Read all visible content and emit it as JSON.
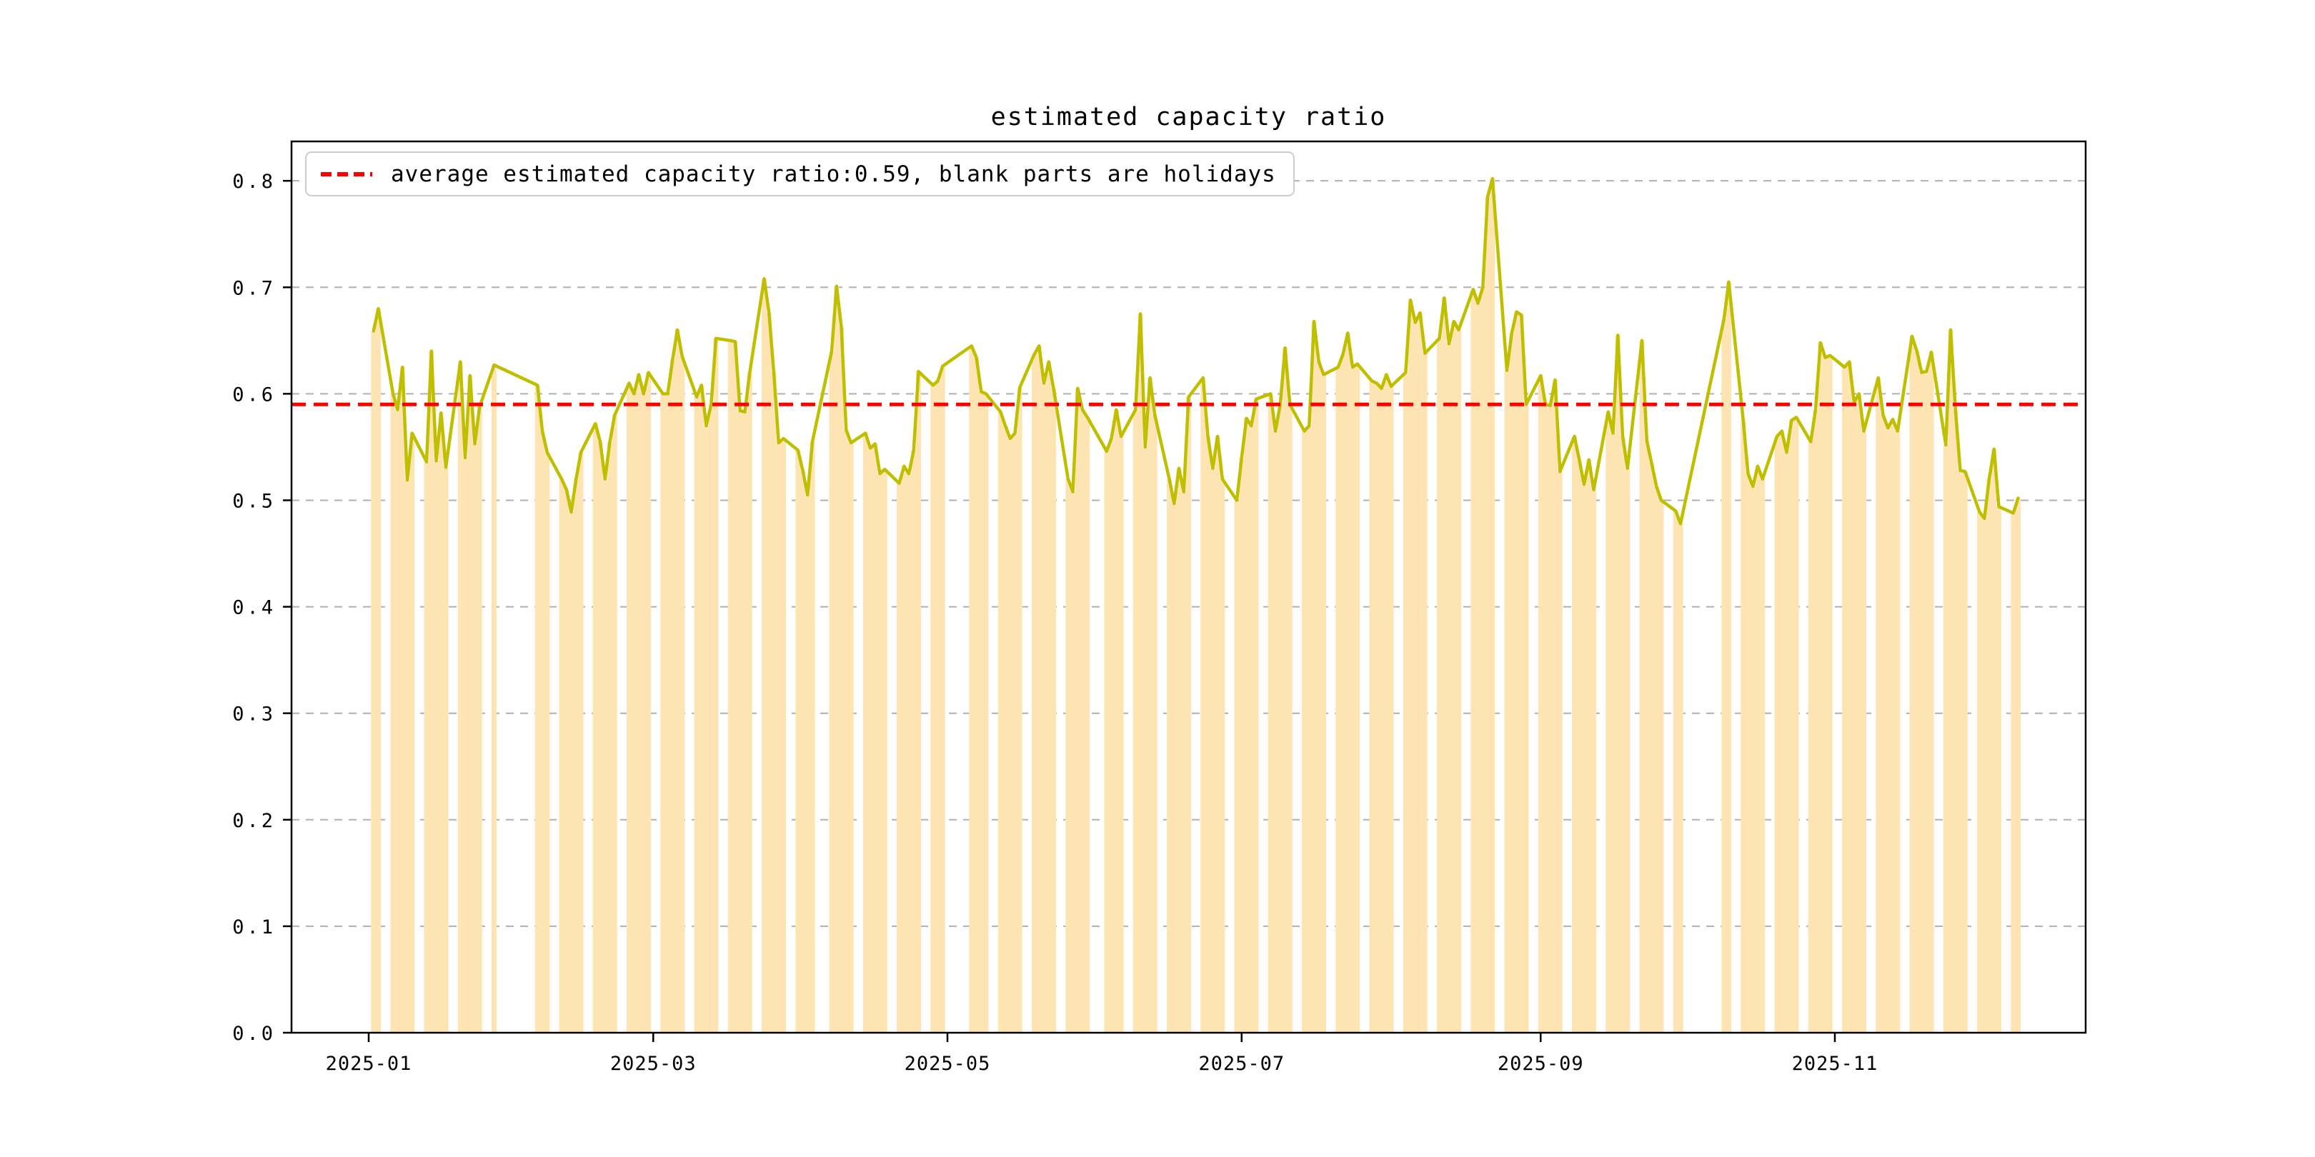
{
  "chart_data": {
    "type": "line",
    "title": "estimated capacity ratio",
    "legend_label": "average estimated capacity ratio:0.59, blank parts are holidays",
    "average_value": 0.59,
    "average_label": "0.59",
    "legend_position": "upper left",
    "grid": true,
    "ylim": [
      0.0,
      0.837
    ],
    "xlim": [
      "2024-12-16",
      "2025-12-23"
    ],
    "yticks": [
      {
        "v": 0.0,
        "label": "0.0"
      },
      {
        "v": 0.1,
        "label": "0.1"
      },
      {
        "v": 0.2,
        "label": "0.2"
      },
      {
        "v": 0.3,
        "label": "0.3"
      },
      {
        "v": 0.4,
        "label": "0.4"
      },
      {
        "v": 0.5,
        "label": "0.5"
      },
      {
        "v": 0.6,
        "label": "0.6"
      },
      {
        "v": 0.7,
        "label": "0.7"
      },
      {
        "v": 0.8,
        "label": "0.8"
      }
    ],
    "xticks": [
      {
        "date": "2025-01-01",
        "label": "2025-01"
      },
      {
        "date": "2025-03-01",
        "label": "2025-03"
      },
      {
        "date": "2025-05-01",
        "label": "2025-05"
      },
      {
        "date": "2025-07-01",
        "label": "2025-07"
      },
      {
        "date": "2025-09-01",
        "label": "2025-09"
      },
      {
        "date": "2025-11-01",
        "label": "2025-11"
      }
    ],
    "colors": {
      "line": "#bfbf00",
      "bars": "#ffe4b3",
      "average_line": "#ff0000",
      "grid": "#b0b0b0",
      "axes": "#000000"
    },
    "series": {
      "name": "estimated capacity ratio (workdays, blanks are holidays)",
      "dates": [
        "2025-01-02",
        "2025-01-03",
        "2025-01-06",
        "2025-01-07",
        "2025-01-08",
        "2025-01-09",
        "2025-01-10",
        "2025-01-13",
        "2025-01-14",
        "2025-01-15",
        "2025-01-16",
        "2025-01-17",
        "2025-01-20",
        "2025-01-21",
        "2025-01-22",
        "2025-01-23",
        "2025-01-24",
        "2025-01-27",
        "2025-02-05",
        "2025-02-06",
        "2025-02-07",
        "2025-02-10",
        "2025-02-11",
        "2025-02-12",
        "2025-02-13",
        "2025-02-14",
        "2025-02-17",
        "2025-02-18",
        "2025-02-19",
        "2025-02-20",
        "2025-02-21",
        "2025-02-24",
        "2025-02-25",
        "2025-02-26",
        "2025-02-27",
        "2025-02-28",
        "2025-03-03",
        "2025-03-04",
        "2025-03-05",
        "2025-03-06",
        "2025-03-07",
        "2025-03-10",
        "2025-03-11",
        "2025-03-12",
        "2025-03-13",
        "2025-03-14",
        "2025-03-17",
        "2025-03-18",
        "2025-03-19",
        "2025-03-20",
        "2025-03-21",
        "2025-03-24",
        "2025-03-25",
        "2025-03-26",
        "2025-03-27",
        "2025-03-28",
        "2025-03-31",
        "2025-04-01",
        "2025-04-02",
        "2025-04-03",
        "2025-04-07",
        "2025-04-08",
        "2025-04-09",
        "2025-04-10",
        "2025-04-11",
        "2025-04-14",
        "2025-04-15",
        "2025-04-16",
        "2025-04-17",
        "2025-04-18",
        "2025-04-21",
        "2025-04-22",
        "2025-04-23",
        "2025-04-24",
        "2025-04-25",
        "2025-04-28",
        "2025-04-29",
        "2025-04-30",
        "2025-05-06",
        "2025-05-07",
        "2025-05-08",
        "2025-05-09",
        "2025-05-12",
        "2025-05-13",
        "2025-05-14",
        "2025-05-15",
        "2025-05-16",
        "2025-05-19",
        "2025-05-20",
        "2025-05-21",
        "2025-05-22",
        "2025-05-23",
        "2025-05-26",
        "2025-05-27",
        "2025-05-28",
        "2025-05-29",
        "2025-05-30",
        "2025-06-03",
        "2025-06-04",
        "2025-06-05",
        "2025-06-06",
        "2025-06-09",
        "2025-06-10",
        "2025-06-11",
        "2025-06-12",
        "2025-06-13",
        "2025-06-16",
        "2025-06-17",
        "2025-06-18",
        "2025-06-19",
        "2025-06-20",
        "2025-06-23",
        "2025-06-24",
        "2025-06-25",
        "2025-06-26",
        "2025-06-27",
        "2025-06-30",
        "2025-07-01",
        "2025-07-02",
        "2025-07-03",
        "2025-07-04",
        "2025-07-07",
        "2025-07-08",
        "2025-07-09",
        "2025-07-10",
        "2025-07-11",
        "2025-07-14",
        "2025-07-15",
        "2025-07-16",
        "2025-07-17",
        "2025-07-18",
        "2025-07-21",
        "2025-07-22",
        "2025-07-23",
        "2025-07-24",
        "2025-07-25",
        "2025-07-28",
        "2025-07-29",
        "2025-07-30",
        "2025-07-31",
        "2025-08-01",
        "2025-08-04",
        "2025-08-05",
        "2025-08-06",
        "2025-08-07",
        "2025-08-08",
        "2025-08-11",
        "2025-08-12",
        "2025-08-13",
        "2025-08-14",
        "2025-08-15",
        "2025-08-18",
        "2025-08-19",
        "2025-08-20",
        "2025-08-21",
        "2025-08-22",
        "2025-08-25",
        "2025-08-26",
        "2025-08-27",
        "2025-08-28",
        "2025-08-29",
        "2025-09-01",
        "2025-09-02",
        "2025-09-03",
        "2025-09-04",
        "2025-09-05",
        "2025-09-08",
        "2025-09-09",
        "2025-09-10",
        "2025-09-11",
        "2025-09-12",
        "2025-09-15",
        "2025-09-16",
        "2025-09-17",
        "2025-09-18",
        "2025-09-19",
        "2025-09-22",
        "2025-09-23",
        "2025-09-24",
        "2025-09-25",
        "2025-09-26",
        "2025-09-29",
        "2025-09-30",
        "2025-10-09",
        "2025-10-10",
        "2025-10-13",
        "2025-10-14",
        "2025-10-15",
        "2025-10-16",
        "2025-10-17",
        "2025-10-20",
        "2025-10-21",
        "2025-10-22",
        "2025-10-23",
        "2025-10-24",
        "2025-10-27",
        "2025-10-28",
        "2025-10-29",
        "2025-10-30",
        "2025-10-31",
        "2025-11-03",
        "2025-11-04",
        "2025-11-05",
        "2025-11-06",
        "2025-11-07",
        "2025-11-10",
        "2025-11-11",
        "2025-11-12",
        "2025-11-13",
        "2025-11-14",
        "2025-11-17",
        "2025-11-18",
        "2025-11-19",
        "2025-11-20",
        "2025-11-21",
        "2025-11-24",
        "2025-11-25",
        "2025-11-26",
        "2025-11-27",
        "2025-11-28",
        "2025-12-01",
        "2025-12-02",
        "2025-12-03",
        "2025-12-04",
        "2025-12-05",
        "2025-12-08",
        "2025-12-09"
      ],
      "values": [
        0.659,
        0.68,
        0.601,
        0.585,
        0.625,
        0.519,
        0.563,
        0.536,
        0.64,
        0.537,
        0.582,
        0.531,
        0.63,
        0.54,
        0.617,
        0.553,
        0.588,
        0.627,
        0.608,
        0.565,
        0.545,
        0.52,
        0.51,
        0.489,
        0.52,
        0.545,
        0.572,
        0.555,
        0.52,
        0.555,
        0.58,
        0.61,
        0.6,
        0.618,
        0.6,
        0.62,
        0.6,
        0.6,
        0.632,
        0.66,
        0.635,
        0.597,
        0.608,
        0.57,
        0.59,
        0.652,
        0.65,
        0.649,
        0.584,
        0.583,
        0.62,
        0.708,
        0.676,
        0.62,
        0.554,
        0.558,
        0.547,
        0.528,
        0.505,
        0.555,
        0.64,
        0.701,
        0.663,
        0.566,
        0.554,
        0.563,
        0.549,
        0.553,
        0.525,
        0.529,
        0.516,
        0.532,
        0.525,
        0.547,
        0.621,
        0.608,
        0.612,
        0.626,
        0.645,
        0.634,
        0.602,
        0.6,
        0.583,
        0.57,
        0.558,
        0.563,
        0.606,
        0.637,
        0.645,
        0.61,
        0.63,
        0.605,
        0.52,
        0.508,
        0.605,
        0.585,
        0.578,
        0.546,
        0.558,
        0.585,
        0.56,
        0.585,
        0.675,
        0.55,
        0.615,
        0.58,
        0.52,
        0.497,
        0.53,
        0.508,
        0.597,
        0.615,
        0.56,
        0.53,
        0.56,
        0.52,
        0.5,
        0.54,
        0.577,
        0.57,
        0.595,
        0.6,
        0.565,
        0.59,
        0.643,
        0.59,
        0.565,
        0.57,
        0.668,
        0.63,
        0.618,
        0.625,
        0.637,
        0.657,
        0.625,
        0.628,
        0.612,
        0.61,
        0.605,
        0.618,
        0.607,
        0.62,
        0.688,
        0.667,
        0.676,
        0.638,
        0.652,
        0.69,
        0.647,
        0.668,
        0.66,
        0.698,
        0.685,
        0.7,
        0.785,
        0.802,
        0.622,
        0.657,
        0.677,
        0.674,
        0.59,
        0.617,
        0.59,
        0.589,
        0.613,
        0.527,
        0.56,
        0.538,
        0.515,
        0.538,
        0.51,
        0.583,
        0.563,
        0.655,
        0.56,
        0.53,
        0.65,
        0.556,
        0.535,
        0.513,
        0.5,
        0.49,
        0.478,
        0.67,
        0.705,
        0.575,
        0.525,
        0.513,
        0.532,
        0.52,
        0.56,
        0.565,
        0.545,
        0.575,
        0.578,
        0.555,
        0.585,
        0.648,
        0.634,
        0.636,
        0.625,
        0.63,
        0.592,
        0.6,
        0.565,
        0.615,
        0.58,
        0.568,
        0.576,
        0.565,
        0.654,
        0.64,
        0.62,
        0.621,
        0.639,
        0.552,
        0.66,
        0.585,
        0.528,
        0.527,
        0.489,
        0.483,
        0.52,
        0.548,
        0.494,
        0.488,
        0.502
      ]
    }
  }
}
